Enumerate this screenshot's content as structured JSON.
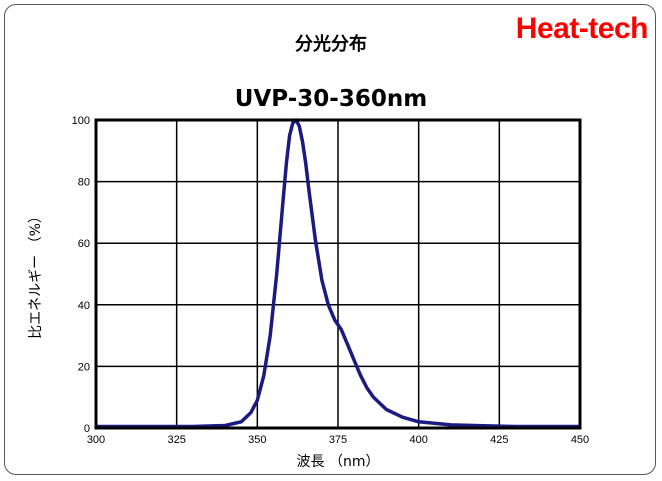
{
  "brand": {
    "text": "Heat-tech",
    "color": "#ff0000"
  },
  "chart_data": {
    "type": "line",
    "title": "分光分布",
    "subtitle": "UVP-30-360nm",
    "xlabel": "波長 （nm）",
    "ylabel": "比エネルギー （%）",
    "xlim": [
      300,
      450
    ],
    "ylim": [
      0,
      100
    ],
    "xticks": [
      300,
      325,
      350,
      375,
      400,
      425,
      450
    ],
    "yticks": [
      0,
      20,
      40,
      60,
      80,
      100
    ],
    "grid": true,
    "line_color": "#1a1a80",
    "series": [
      {
        "x": [
          300,
          310,
          320,
          330,
          340,
          345,
          348,
          350,
          352,
          354,
          356,
          358,
          359,
          360,
          361,
          362,
          363,
          364,
          365,
          366,
          368,
          370,
          372,
          374,
          375,
          376,
          378,
          380,
          382,
          384,
          386,
          388,
          390,
          395,
          400,
          410,
          420,
          430,
          440,
          450
        ],
        "y": [
          0.5,
          0.5,
          0.5,
          0.5,
          0.8,
          2,
          5,
          9,
          17,
          30,
          50,
          74,
          86,
          95,
          99,
          100,
          98,
          93,
          86,
          77,
          61,
          48,
          40,
          35,
          33.5,
          32,
          27,
          22,
          17,
          13,
          10,
          8,
          6,
          3.5,
          2,
          1,
          0.7,
          0.5,
          0.5,
          0.5
        ]
      }
    ]
  }
}
